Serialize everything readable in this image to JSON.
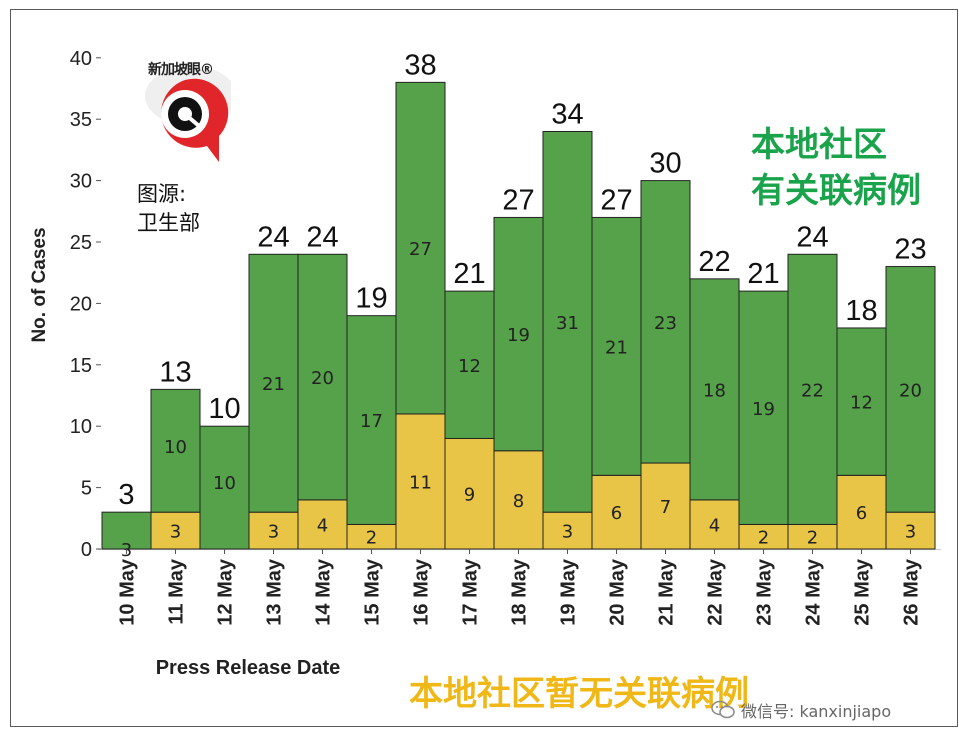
{
  "chart_data": {
    "type": "bar",
    "stacked": true,
    "categories": [
      "10 May",
      "11 May",
      "12 May",
      "13 May",
      "14 May",
      "15 May",
      "16 May",
      "17 May",
      "18 May",
      "19 May",
      "20 May",
      "21 May",
      "22 May",
      "23 May",
      "24 May",
      "25 May",
      "26 May"
    ],
    "series": [
      {
        "name": "本地社区暂无关联病例",
        "color": "#e8c547",
        "values": [
          0,
          3,
          0,
          3,
          4,
          2,
          11,
          9,
          8,
          3,
          6,
          7,
          4,
          2,
          2,
          6,
          3
        ]
      },
      {
        "name": "本地社区有关联病例",
        "color": "#55a24a",
        "values": [
          3,
          10,
          10,
          21,
          20,
          17,
          27,
          12,
          19,
          31,
          21,
          23,
          18,
          19,
          22,
          12,
          20
        ]
      }
    ],
    "bottom_labels": [
      "3",
      "3",
      "",
      "3",
      "4",
      "2",
      "11",
      "9",
      "8",
      "3",
      "6",
      "7",
      "4",
      "2",
      "2",
      "6",
      "3"
    ],
    "green_labels": [
      "",
      "10",
      "10",
      "21",
      "20",
      "17",
      "27",
      "12",
      "19",
      "31",
      "21",
      "23",
      "18",
      "19",
      "22",
      "12",
      "20"
    ],
    "totals": [
      3,
      13,
      10,
      24,
      24,
      19,
      38,
      21,
      27,
      34,
      27,
      30,
      22,
      21,
      24,
      18,
      23
    ],
    "xlabel": "Press Release Date",
    "ylabel": "No. of Cases",
    "ylim": [
      0,
      40
    ],
    "yticks": [
      0,
      5,
      10,
      15,
      20,
      25,
      30,
      35,
      40
    ]
  },
  "logo_text": "新加坡眼®",
  "source": {
    "line1": "图源:",
    "line2": "卫生部"
  },
  "legend": {
    "linked_line1": "本地社区",
    "linked_line2": "有关联病例",
    "unlinked": "本地社区暂无关联病例"
  },
  "watermark": "微信号: kanxinjiapo",
  "colors": {
    "green": "#55a24a",
    "yellow": "#e8c547",
    "legend_green": "#19a34a",
    "legend_yellow": "#f0b817",
    "logo_red": "#e0262a"
  }
}
